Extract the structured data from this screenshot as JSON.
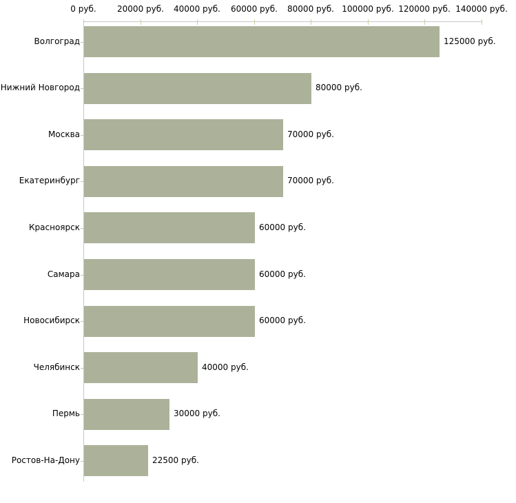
{
  "chart_data": {
    "type": "bar",
    "orientation": "horizontal",
    "title": "",
    "xlabel": "",
    "ylabel": "",
    "categories": [
      "Волгоград",
      "Нижний Новгород",
      "Москва",
      "Екатеринбург",
      "Красноярск",
      "Самара",
      "Новосибирск",
      "Челябинск",
      "Пермь",
      "Ростов-На-Дону"
    ],
    "values": [
      125000,
      80000,
      70000,
      70000,
      60000,
      60000,
      60000,
      40000,
      30000,
      22500
    ],
    "value_labels": [
      "125000 руб.",
      "80000 руб.",
      "70000 руб.",
      "70000 руб.",
      "60000 руб.",
      "60000 руб.",
      "60000 руб.",
      "40000 руб.",
      "30000 руб.",
      "22500 руб."
    ],
    "x_axis": {
      "position": "top",
      "min": 0,
      "max": 140000,
      "tick_step": 20000,
      "ticks": [
        0,
        20000,
        40000,
        60000,
        80000,
        100000,
        120000,
        140000
      ],
      "tick_labels": [
        "0 руб.",
        "20000 руб.",
        "40000 руб.",
        "60000 руб.",
        "80000 руб.",
        "100000 руб.",
        "120000 руб.",
        "140000 руб."
      ],
      "unit": "руб."
    },
    "legend": null,
    "grid": false,
    "colors": {
      "bar": "#acb299",
      "axis_line": "#c6c6c6",
      "x_tick": "#cdcfa0",
      "y_tick": "#c3c5ab",
      "text": "#000000",
      "background": "#ffffff"
    }
  }
}
